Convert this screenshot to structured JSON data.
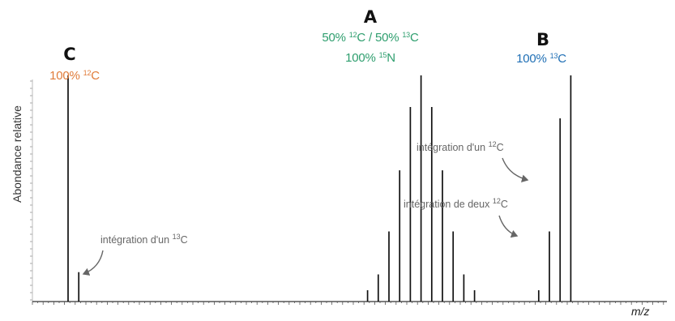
{
  "chart_data": {
    "type": "bar",
    "ylabel": "Abondance relative",
    "xlabel": "m/z",
    "ylim": [
      0,
      100
    ],
    "colors": {
      "C": "#e07b39",
      "A": "#2e9e6e",
      "B": "#1f6fb5",
      "annotation": "#666666",
      "axis": "#333333"
    },
    "series": [
      {
        "group": "C",
        "label": "100% ",
        "label_iso": "12",
        "label_tail": "C",
        "peaks": [
          {
            "index": 0,
            "value": 100
          },
          {
            "index": 1,
            "value": 13
          }
        ]
      },
      {
        "group": "A",
        "label_line1_a": "50% ",
        "label_line1_iso1": "12",
        "label_line1_b": "C / 50% ",
        "label_line1_iso2": "13",
        "label_line1_c": "C",
        "label_line2_a": "100% ",
        "label_line2_iso": "15",
        "label_line2_b": "N",
        "peaks": [
          {
            "index": 28,
            "value": 5
          },
          {
            "index": 29,
            "value": 12
          },
          {
            "index": 30,
            "value": 31
          },
          {
            "index": 31,
            "value": 58
          },
          {
            "index": 32,
            "value": 86
          },
          {
            "index": 33,
            "value": 100
          },
          {
            "index": 34,
            "value": 86
          },
          {
            "index": 35,
            "value": 58
          },
          {
            "index": 36,
            "value": 31
          },
          {
            "index": 37,
            "value": 12
          },
          {
            "index": 38,
            "value": 5
          }
        ]
      },
      {
        "group": "B",
        "label": "100% ",
        "label_iso": "13",
        "label_tail": "C",
        "peaks": [
          {
            "index": 44,
            "value": 5
          },
          {
            "index": 45,
            "value": 31
          },
          {
            "index": 46,
            "value": 81
          },
          {
            "index": 47,
            "value": 100
          }
        ]
      }
    ],
    "annotations": [
      {
        "key": "C13",
        "text": "intégration d'un ",
        "iso": "13",
        "tail": "C"
      },
      {
        "key": "B12",
        "text": "intégration d'un ",
        "iso": "12",
        "tail": "C"
      },
      {
        "key": "B2x12",
        "text": "intégration de deux ",
        "iso": "12",
        "tail": "C"
      }
    ],
    "group_letters": [
      "C",
      "A",
      "B"
    ]
  }
}
